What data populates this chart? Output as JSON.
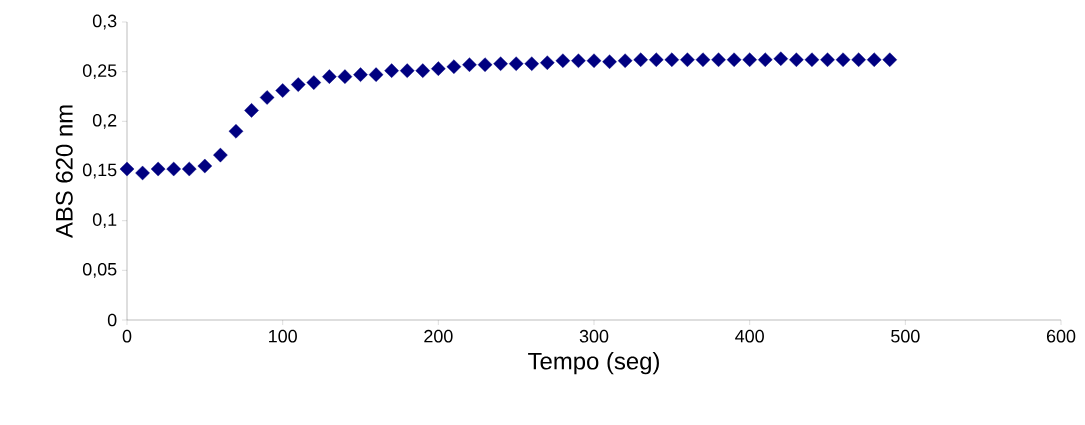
{
  "chart_data": {
    "type": "scatter",
    "xlabel": "Tempo (seg)",
    "ylabel": "ABS 620 nm",
    "x": [
      0,
      10,
      20,
      30,
      40,
      50,
      60,
      70,
      80,
      90,
      100,
      110,
      120,
      130,
      140,
      150,
      160,
      170,
      180,
      190,
      200,
      210,
      220,
      230,
      240,
      250,
      260,
      270,
      280,
      290,
      300,
      310,
      320,
      330,
      340,
      350,
      360,
      370,
      380,
      390,
      400,
      410,
      420,
      430,
      440,
      450,
      460,
      470,
      480,
      490
    ],
    "values": [
      0.152,
      0.148,
      0.152,
      0.152,
      0.152,
      0.155,
      0.166,
      0.19,
      0.211,
      0.224,
      0.231,
      0.237,
      0.239,
      0.245,
      0.245,
      0.247,
      0.247,
      0.251,
      0.251,
      0.251,
      0.253,
      0.255,
      0.257,
      0.257,
      0.258,
      0.258,
      0.258,
      0.259,
      0.261,
      0.261,
      0.261,
      0.26,
      0.261,
      0.262,
      0.262,
      0.262,
      0.262,
      0.262,
      0.262,
      0.262,
      0.262,
      0.262,
      0.263,
      0.262,
      0.262,
      0.262,
      0.262,
      0.262,
      0.262,
      0.262
    ],
    "color": "#000080",
    "marker": "diamond",
    "xlim": [
      0,
      600
    ],
    "xticks": [
      0,
      100,
      200,
      300,
      400,
      500,
      600
    ],
    "ylim": [
      0,
      0.3
    ],
    "yticks": [
      {
        "value": 0,
        "label": "0"
      },
      {
        "value": 0.05,
        "label": "0,05"
      },
      {
        "value": 0.1,
        "label": "0,1"
      },
      {
        "value": 0.15,
        "label": "0,15"
      },
      {
        "value": 0.2,
        "label": "0,2"
      },
      {
        "value": 0.25,
        "label": "0,25"
      },
      {
        "value": 0.3,
        "label": "0,3"
      }
    ],
    "grid": false
  }
}
